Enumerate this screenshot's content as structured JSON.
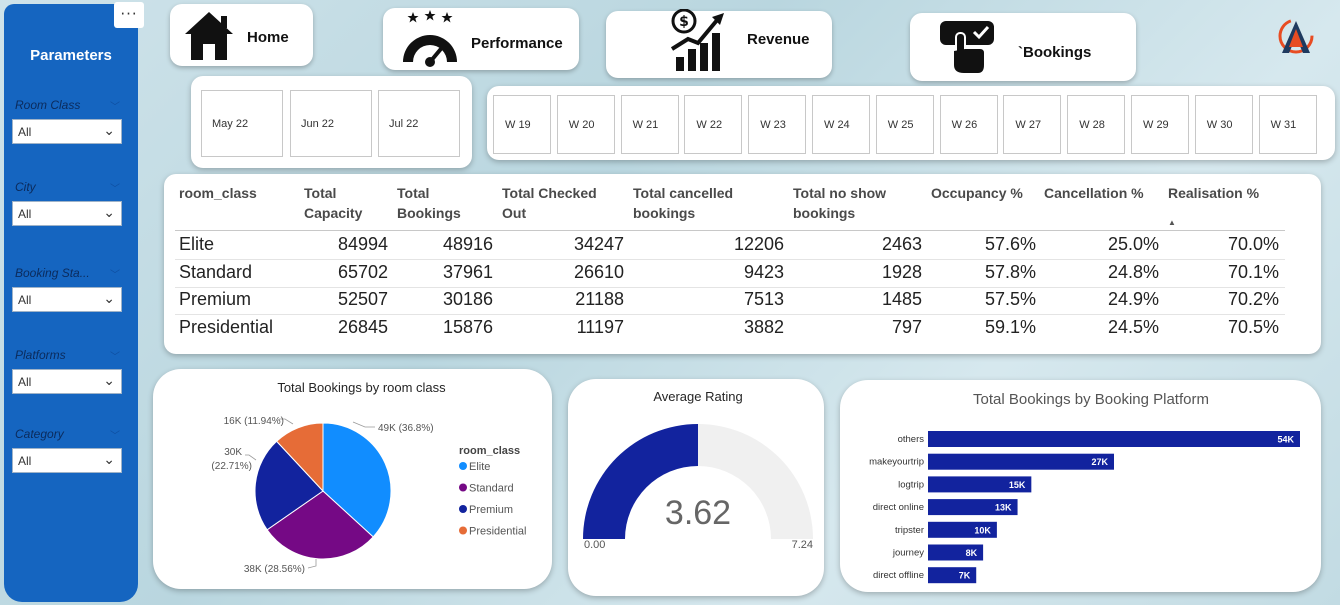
{
  "sidebar": {
    "more_label": "···",
    "title": "Parameters",
    "slicers": [
      {
        "label": "Room Class",
        "value": "All"
      },
      {
        "label": "City",
        "value": "All"
      },
      {
        "label": "Booking Sta...",
        "value": "All"
      },
      {
        "label": "Platforms",
        "value": "All"
      },
      {
        "label": "Category",
        "value": "All"
      }
    ]
  },
  "nav": {
    "home": "Home",
    "performance": "Performance",
    "revenue": "Revenue",
    "bookings": "`Bookings"
  },
  "months": [
    "May 22",
    "Jun 22",
    "Jul 22"
  ],
  "weeks": [
    "W 19",
    "W 20",
    "W 21",
    "W 22",
    "W 23",
    "W 24",
    "W 25",
    "W 26",
    "W 27",
    "W 28",
    "W 29",
    "W 30",
    "W 31"
  ],
  "table": {
    "headers": [
      [
        "room_class",
        ""
      ],
      [
        "Total",
        "Capacity"
      ],
      [
        "Total",
        "Bookings"
      ],
      [
        "Total Checked",
        "Out"
      ],
      [
        "Total cancelled",
        "bookings"
      ],
      [
        "Total no show",
        "bookings"
      ],
      [
        "Occupancy %",
        ""
      ],
      [
        "Cancellation %",
        ""
      ],
      [
        "Realisation %",
        ""
      ]
    ],
    "sort_indicator": "▲",
    "rows": [
      [
        "Elite",
        "84994",
        "48916",
        "34247",
        "12206",
        "2463",
        "57.6%",
        "25.0%",
        "70.0%"
      ],
      [
        "Standard",
        "65702",
        "37961",
        "26610",
        "9423",
        "1928",
        "57.8%",
        "24.8%",
        "70.1%"
      ],
      [
        "Premium",
        "52507",
        "30186",
        "21188",
        "7513",
        "1485",
        "57.5%",
        "24.9%",
        "70.2%"
      ],
      [
        "Presidential",
        "26845",
        "15876",
        "11197",
        "3882",
        "797",
        "59.1%",
        "24.5%",
        "70.5%"
      ]
    ]
  },
  "pie": {
    "title": "Total Bookings by room class",
    "legend_title": "room_class",
    "slices": [
      {
        "name": "Elite",
        "value": 48916,
        "label": "49K (36.8%)",
        "color": "#118dff"
      },
      {
        "name": "Standard",
        "value": 37961,
        "label": "38K (28.56%)",
        "color": "#750985"
      },
      {
        "name": "Premium",
        "value": 30186,
        "label_lines": [
          "30K",
          "(22.71%)"
        ],
        "color": "#12239e"
      },
      {
        "name": "Presidential",
        "value": 15876,
        "label": "16K (11.94%)",
        "color": "#e66c37"
      }
    ]
  },
  "gauge": {
    "title": "Average Rating",
    "value": 3.62,
    "value_label": "3.62",
    "min": 0,
    "min_label": "0.00",
    "max": 7.24,
    "max_label": "7.24",
    "fill_color": "#12239e",
    "track_color": "#f0f0f0"
  },
  "chart_data": {
    "type": "bar",
    "title": "Total Bookings by Booking Platform",
    "orientation": "horizontal",
    "categories": [
      "others",
      "makeyourtrip",
      "logtrip",
      "direct online",
      "tripster",
      "journey",
      "direct offline"
    ],
    "values": [
      54,
      27,
      15,
      13,
      10,
      8,
      7
    ],
    "value_labels": [
      "54K",
      "27K",
      "15K",
      "13K",
      "10K",
      "8K",
      "7K"
    ],
    "unit": "K",
    "color": "#12239e"
  }
}
